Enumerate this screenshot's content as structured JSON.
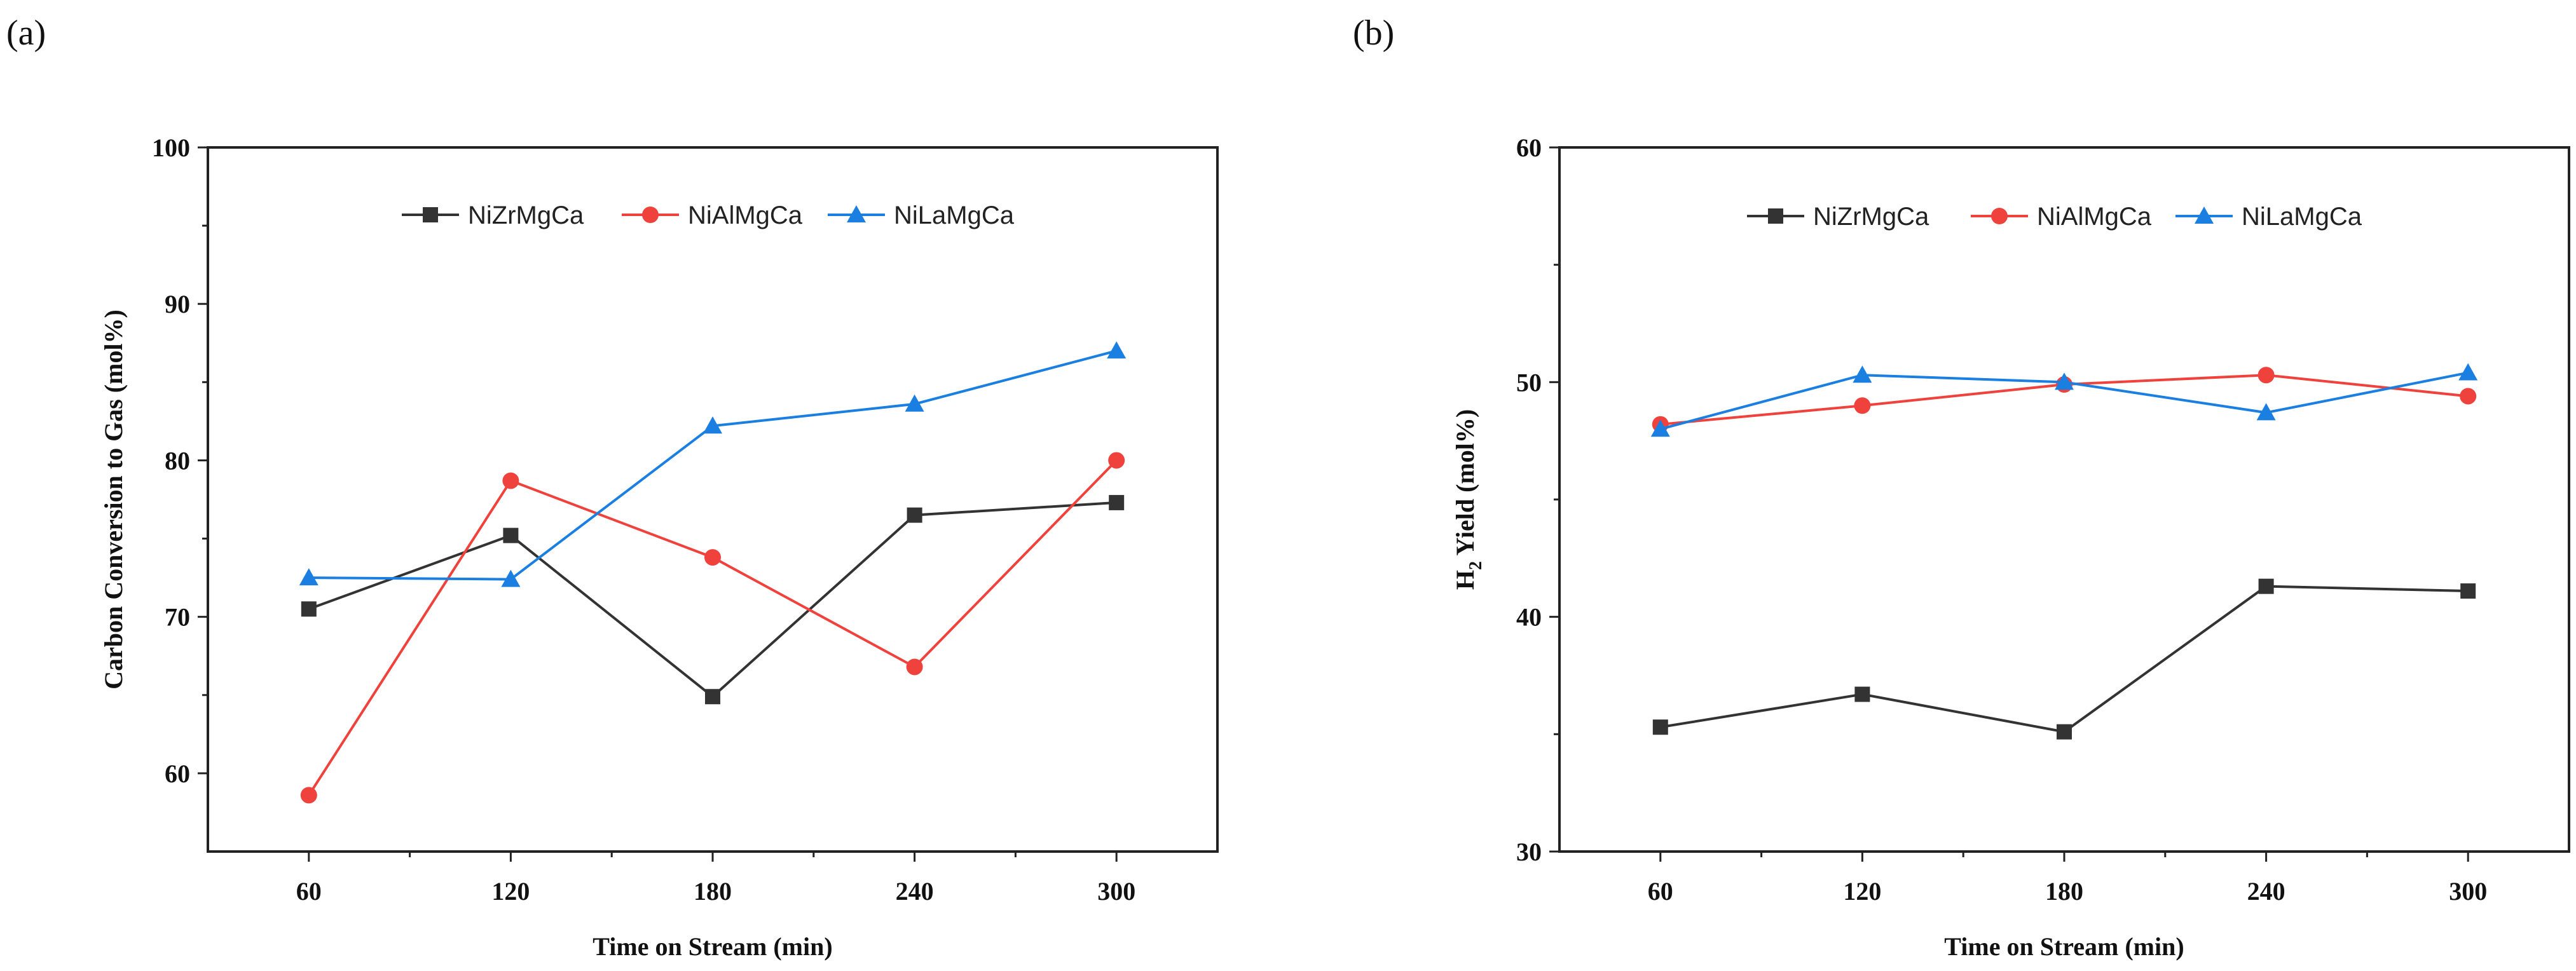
{
  "chart_data": [
    {
      "panel_label": "(a)",
      "type": "line",
      "x": [
        60,
        120,
        180,
        240,
        300
      ],
      "xlabel": "Time on Stream (min)",
      "ylabel": "Carbon Conversion to Gas (mol%)",
      "ylim": [
        55,
        100
      ],
      "yticks": [
        60,
        70,
        80,
        90,
        100
      ],
      "xlim": [
        30,
        330
      ],
      "legend_position": "top-center",
      "grid": false,
      "series": [
        {
          "name": "NiZrMgCa",
          "color": "#333333",
          "marker": "square",
          "values": [
            70.5,
            75.2,
            64.9,
            76.5,
            77.3
          ]
        },
        {
          "name": "NiAlMgCa",
          "color": "#f0423c",
          "marker": "circle",
          "values": [
            58.6,
            78.7,
            73.8,
            66.8,
            80.0
          ]
        },
        {
          "name": "NiLaMgCa",
          "color": "#1a7fe0",
          "marker": "triangle",
          "values": [
            72.5,
            72.4,
            82.2,
            83.6,
            87.0
          ]
        }
      ]
    },
    {
      "panel_label": "(b)",
      "type": "line",
      "x": [
        60,
        120,
        180,
        240,
        300
      ],
      "xlabel": "Time on Stream (min)",
      "ylabel_main": "H",
      "ylabel_sub": "2",
      "ylabel_rest": " Yield (mol%)",
      "ylim": [
        30,
        60
      ],
      "yticks": [
        30,
        40,
        50,
        60
      ],
      "xlim": [
        30,
        330
      ],
      "legend_position": "top-center",
      "grid": false,
      "series": [
        {
          "name": "NiZrMgCa",
          "color": "#333333",
          "marker": "square",
          "values": [
            35.3,
            36.7,
            35.1,
            41.3,
            41.1
          ]
        },
        {
          "name": "NiAlMgCa",
          "color": "#f0423c",
          "marker": "circle",
          "values": [
            48.2,
            49.0,
            49.9,
            50.3,
            49.4
          ]
        },
        {
          "name": "NiLaMgCa",
          "color": "#1a7fe0",
          "marker": "triangle",
          "values": [
            48.0,
            50.3,
            50.0,
            48.7,
            50.4
          ]
        }
      ]
    }
  ]
}
